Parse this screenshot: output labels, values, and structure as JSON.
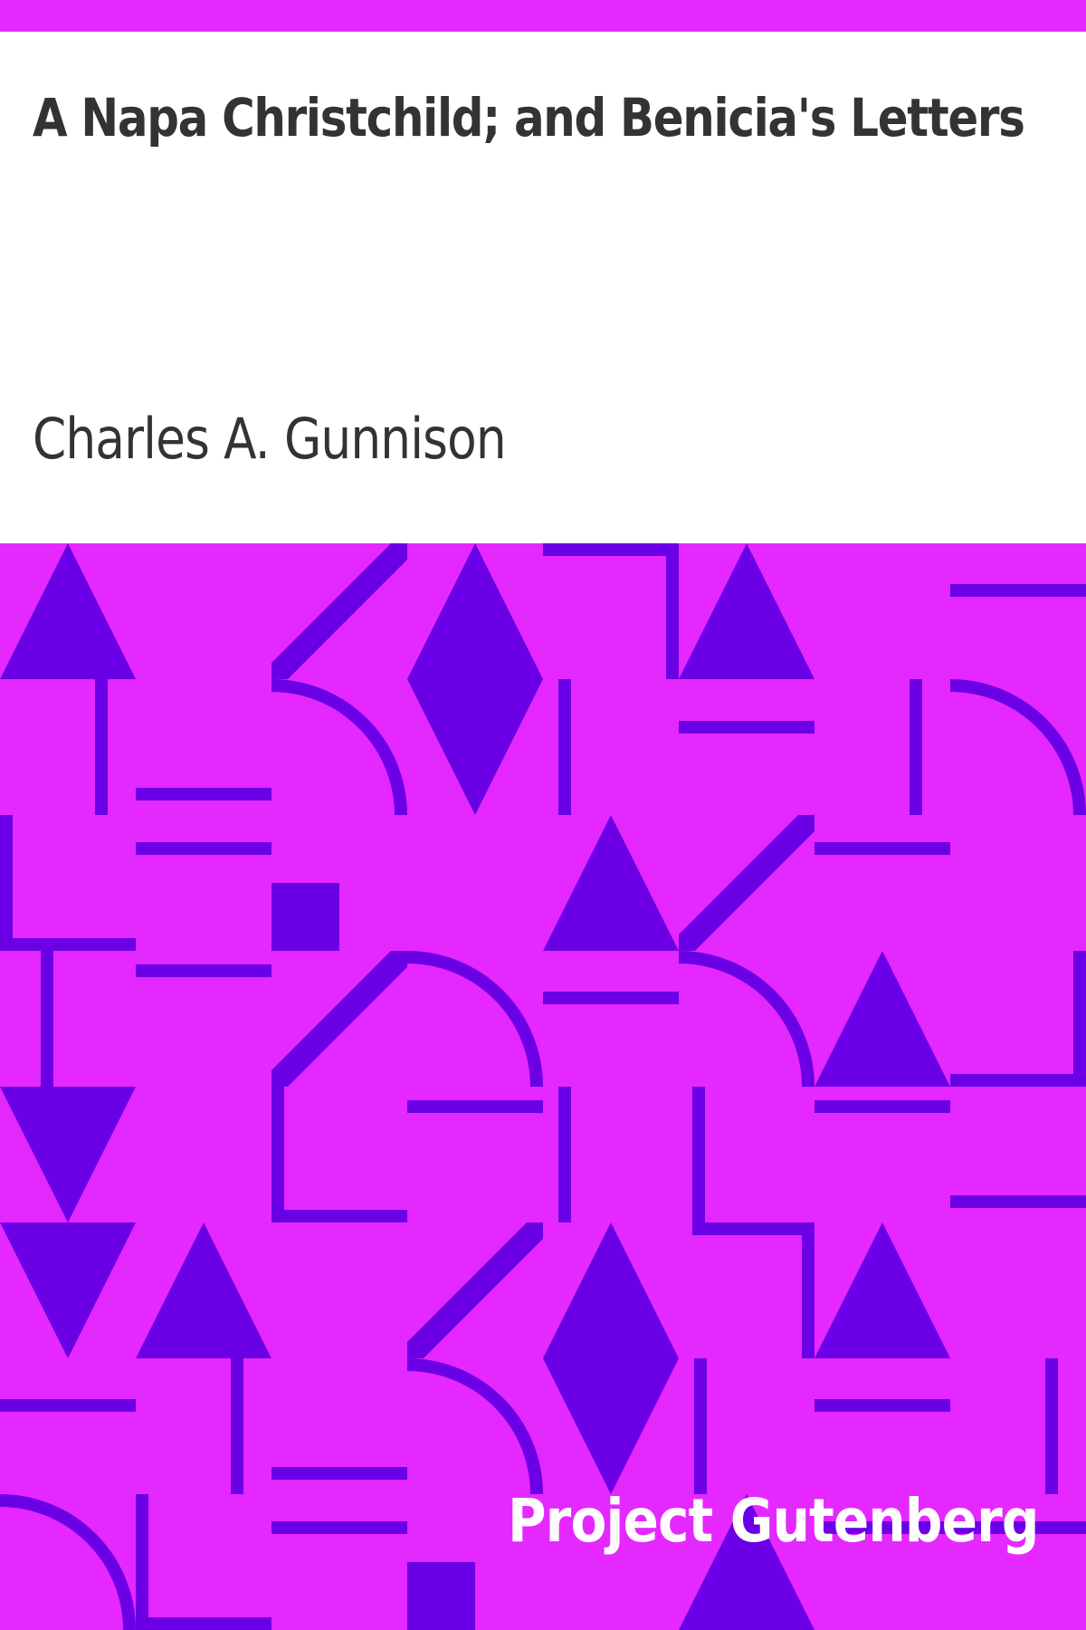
{
  "book": {
    "title": "A Napa Christchild; and Benicia's Letters",
    "author": "Charles A. Gunnison"
  },
  "publisher": {
    "name": "Project Gutenberg"
  },
  "colors": {
    "background": "#ffffff",
    "accent": "#e528ff",
    "shapes": "#6b00e6",
    "text": "#333333",
    "publisher_text": "#ffffff"
  }
}
